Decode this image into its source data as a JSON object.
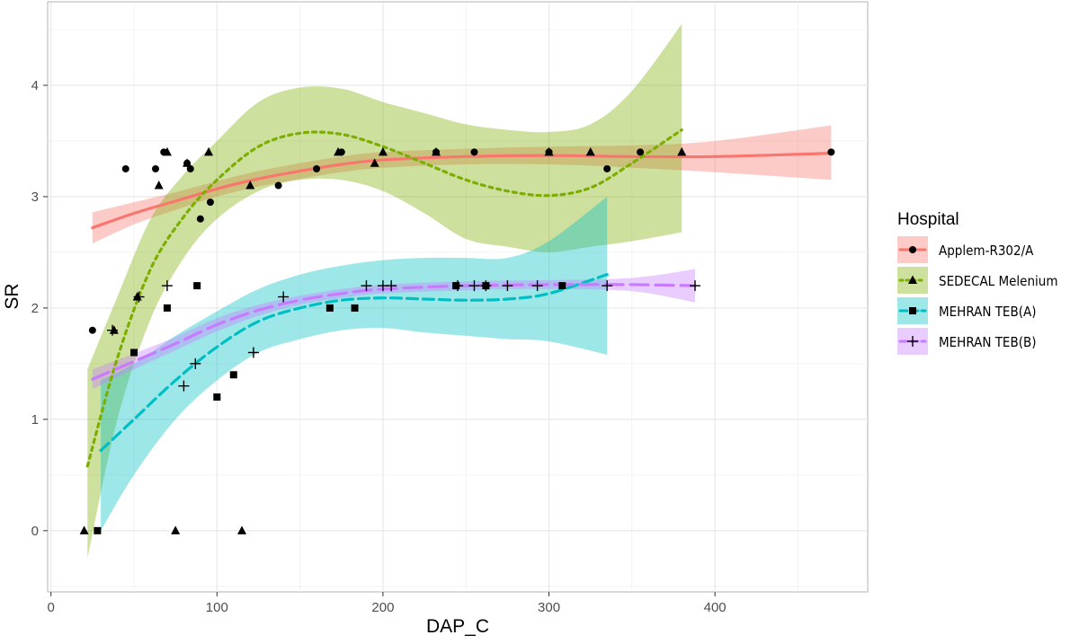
{
  "chart_data": {
    "type": "scatter",
    "xlabel": "DAP_C",
    "ylabel": "SR",
    "xlim": [
      -2,
      492
    ],
    "ylim": [
      -0.55,
      4.75
    ],
    "xticks": [
      0,
      100,
      200,
      300,
      400
    ],
    "yticks": [
      0,
      1,
      2,
      3,
      4
    ],
    "grid": true,
    "legend_placement": "right",
    "legend_title": "Hospital",
    "series": [
      {
        "name": "Applem-R302/A",
        "color": "#F8766D",
        "marker": "circle",
        "line_style": "solid",
        "points": [
          [
            25,
            1.8
          ],
          [
            45,
            3.25
          ],
          [
            63,
            3.25
          ],
          [
            68,
            3.4
          ],
          [
            82,
            3.3
          ],
          [
            84,
            3.25
          ],
          [
            90,
            2.8
          ],
          [
            96,
            2.95
          ],
          [
            137,
            3.1
          ],
          [
            160,
            3.25
          ],
          [
            175,
            3.4
          ],
          [
            232,
            3.4
          ],
          [
            255,
            3.4
          ],
          [
            300,
            3.4
          ],
          [
            335,
            3.25
          ],
          [
            355,
            3.4
          ],
          [
            470,
            3.4
          ]
        ],
        "fit": {
          "x": [
            25,
            50,
            75,
            100,
            125,
            150,
            175,
            200,
            250,
            300,
            350,
            400,
            470
          ],
          "y": [
            2.72,
            2.85,
            2.96,
            3.07,
            3.16,
            3.23,
            3.29,
            3.33,
            3.36,
            3.37,
            3.36,
            3.36,
            3.39
          ],
          "lower": [
            2.58,
            2.75,
            2.88,
            3.0,
            3.09,
            3.16,
            3.22,
            3.26,
            3.29,
            3.29,
            3.26,
            3.22,
            3.15
          ],
          "upper": [
            2.86,
            2.95,
            3.04,
            3.14,
            3.23,
            3.3,
            3.36,
            3.4,
            3.43,
            3.45,
            3.46,
            3.5,
            3.64
          ]
        }
      },
      {
        "name": "SEDECAL Melenium",
        "color": "#7CAE00",
        "marker": "triangle",
        "line_style": "dotted",
        "points": [
          [
            20,
            0
          ],
          [
            38,
            1.8
          ],
          [
            52,
            2.1
          ],
          [
            65,
            3.1
          ],
          [
            70,
            3.4
          ],
          [
            75,
            0
          ],
          [
            82,
            3.3
          ],
          [
            95,
            3.4
          ],
          [
            115,
            0
          ],
          [
            120,
            3.1
          ],
          [
            173,
            3.4
          ],
          [
            195,
            3.3
          ],
          [
            200,
            3.4
          ],
          [
            232,
            3.4
          ],
          [
            300,
            3.4
          ],
          [
            325,
            3.4
          ],
          [
            380,
            3.4
          ]
        ],
        "fit": {
          "x": [
            22,
            40,
            60,
            80,
            100,
            125,
            150,
            175,
            200,
            225,
            250,
            275,
            300,
            325,
            350,
            380
          ],
          "y": [
            0.58,
            1.55,
            2.35,
            2.82,
            3.15,
            3.45,
            3.57,
            3.56,
            3.45,
            3.3,
            3.15,
            3.05,
            3.01,
            3.08,
            3.3,
            3.6
          ],
          "lower": [
            -0.25,
            1.0,
            1.9,
            2.45,
            2.8,
            3.05,
            3.15,
            3.15,
            3.05,
            2.85,
            2.62,
            2.55,
            2.5,
            2.55,
            2.6,
            2.68
          ],
          "upper": [
            1.45,
            2.1,
            2.8,
            3.2,
            3.5,
            3.85,
            3.98,
            3.97,
            3.85,
            3.75,
            3.65,
            3.6,
            3.58,
            3.65,
            3.95,
            4.55
          ]
        }
      },
      {
        "name": "MEHRAN TEB(A)",
        "color": "#00BFC4",
        "marker": "square",
        "line_style": "dashed",
        "points": [
          [
            28,
            0
          ],
          [
            50,
            1.6
          ],
          [
            70,
            2.0
          ],
          [
            88,
            2.2
          ],
          [
            100,
            1.2
          ],
          [
            110,
            1.4
          ],
          [
            168,
            2.0
          ],
          [
            183,
            2.0
          ],
          [
            244,
            2.2
          ],
          [
            262,
            2.2
          ],
          [
            308,
            2.2
          ]
        ],
        "fit": {
          "x": [
            30,
            50,
            75,
            100,
            125,
            150,
            175,
            200,
            225,
            250,
            275,
            300,
            335
          ],
          "y": [
            0.72,
            1.0,
            1.35,
            1.65,
            1.88,
            2.0,
            2.07,
            2.09,
            2.08,
            2.07,
            2.08,
            2.13,
            2.3
          ],
          "lower": [
            0.0,
            0.5,
            1.0,
            1.35,
            1.6,
            1.72,
            1.8,
            1.82,
            1.78,
            1.75,
            1.72,
            1.7,
            1.58
          ],
          "upper": [
            1.35,
            1.5,
            1.75,
            1.97,
            2.17,
            2.3,
            2.38,
            2.43,
            2.45,
            2.45,
            2.45,
            2.6,
            3.0
          ]
        }
      },
      {
        "name": "MEHRAN TEB(B)",
        "color": "#C77CFF",
        "marker": "plus",
        "line_style": "longdash",
        "points": [
          [
            37,
            1.8
          ],
          [
            53,
            2.1
          ],
          [
            70,
            2.2
          ],
          [
            80,
            1.3
          ],
          [
            87,
            1.5
          ],
          [
            122,
            1.6
          ],
          [
            140,
            2.1
          ],
          [
            190,
            2.2
          ],
          [
            200,
            2.2
          ],
          [
            205,
            2.2
          ],
          [
            245,
            2.2
          ],
          [
            255,
            2.2
          ],
          [
            262,
            2.2
          ],
          [
            275,
            2.2
          ],
          [
            293,
            2.2
          ],
          [
            335,
            2.2
          ],
          [
            388,
            2.2
          ]
        ],
        "fit": {
          "x": [
            25,
            50,
            75,
            100,
            125,
            150,
            175,
            200,
            250,
            300,
            350,
            388
          ],
          "y": [
            1.36,
            1.52,
            1.68,
            1.85,
            1.98,
            2.07,
            2.13,
            2.17,
            2.2,
            2.21,
            2.21,
            2.2
          ],
          "lower": [
            1.27,
            1.45,
            1.62,
            1.79,
            1.93,
            2.03,
            2.09,
            2.13,
            2.16,
            2.17,
            2.15,
            2.05
          ],
          "upper": [
            1.45,
            1.59,
            1.74,
            1.91,
            2.03,
            2.11,
            2.17,
            2.21,
            2.24,
            2.25,
            2.27,
            2.35
          ]
        }
      }
    ]
  }
}
